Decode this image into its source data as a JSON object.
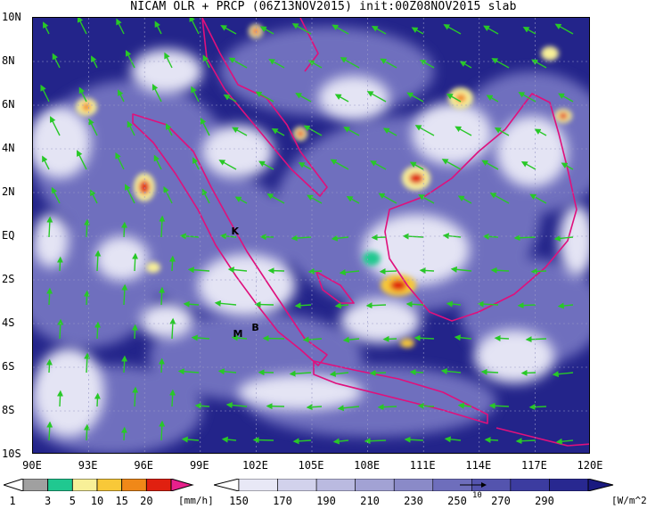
{
  "title": "NICAM OLR + PRCP (06Z13NOV2015) init:00Z08NOV2015 slab",
  "lat_labels": [
    "10N",
    "8N",
    "6N",
    "4N",
    "2N",
    "EQ",
    "2S",
    "4S",
    "6S",
    "8S",
    "10S"
  ],
  "lon_labels": [
    "90E",
    "93E",
    "96E",
    "99E",
    "102E",
    "105E",
    "108E",
    "111E",
    "114E",
    "117E",
    "120E"
  ],
  "places": [
    {
      "label": "K",
      "lon": 100.9,
      "lat": 0.2
    },
    {
      "label": "M",
      "lon": 101.0,
      "lat": -4.5
    },
    {
      "label": "B",
      "lon": 102.0,
      "lat": -4.2
    }
  ],
  "prcp_legend": {
    "values": [
      "1",
      "3",
      "5",
      "10",
      "15",
      "20"
    ],
    "unit": "[mm/h]",
    "colors": [
      "#a0a0a0",
      "#20c890",
      "#f8f098",
      "#f8c838",
      "#f08818",
      "#e02010",
      "#e8208c"
    ]
  },
  "olr_legend": {
    "values": [
      "150",
      "170",
      "190",
      "210",
      "230",
      "250",
      "270",
      "290"
    ],
    "unit": "[W/m^2]",
    "vector_ref": "10",
    "colors": [
      "#ffffff",
      "#e8e8f6",
      "#d2d2ec",
      "#babae0",
      "#a2a2d4",
      "#8a8ac8",
      "#6e6ebc",
      "#5454ae",
      "#3c3ca0",
      "#282890",
      "#1a1a80"
    ]
  },
  "colors": {
    "coastline": "#e0107c",
    "wind_vector": "#28c828",
    "map_background": "#23248a"
  }
}
